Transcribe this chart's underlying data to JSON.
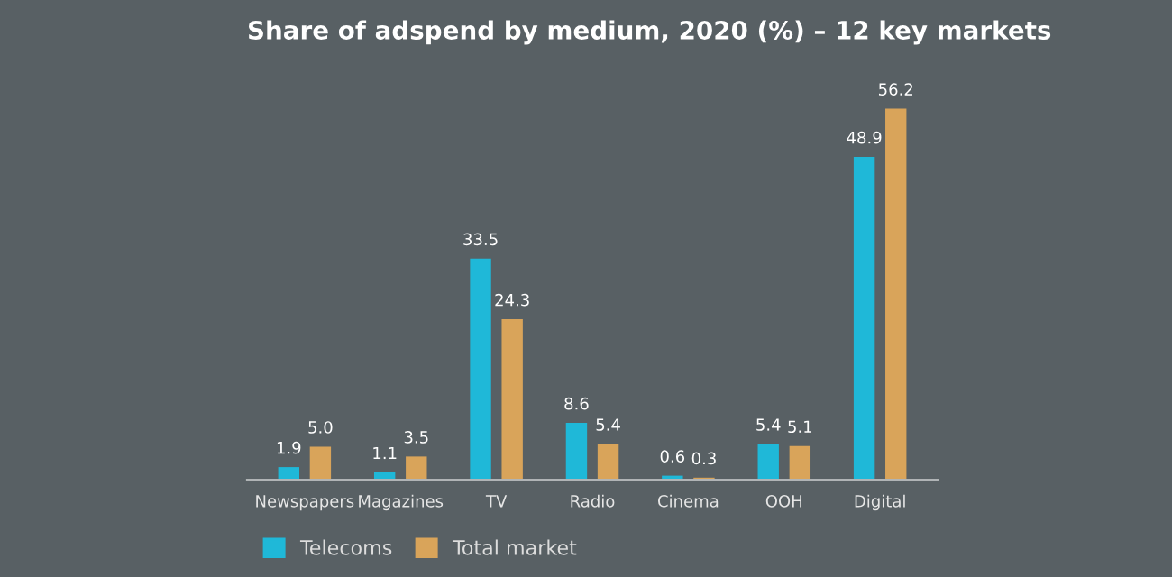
{
  "chart_data": {
    "type": "bar",
    "title": "Share of adspend by medium, 2020 (%) – 12 key markets",
    "categories": [
      "Newspapers",
      "Magazines",
      "TV",
      "Radio",
      "Cinema",
      "OOH",
      "Digital"
    ],
    "series": [
      {
        "name": "Telecoms",
        "color": "#1fb8d8",
        "values": [
          1.9,
          1.1,
          33.5,
          8.6,
          0.6,
          5.4,
          48.9
        ],
        "value_labels": [
          "1.9",
          "1.1",
          "33.5",
          "8.6",
          "0.6",
          "5.4",
          "48.9"
        ]
      },
      {
        "name": "Total market",
        "color": "#d9a45a",
        "values": [
          5.0,
          3.5,
          24.3,
          5.4,
          0.3,
          5.1,
          56.2
        ],
        "value_labels": [
          "5.0",
          "3.5",
          "24.3",
          "5.4",
          "0.3",
          "5.1",
          "56.2"
        ]
      }
    ],
    "legend": "bottom left",
    "tick_labels": "x"
  }
}
